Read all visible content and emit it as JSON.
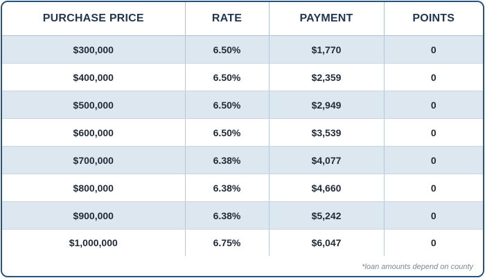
{
  "table": {
    "headers": [
      "PURCHASE PRICE",
      "RATE",
      "PAYMENT",
      "POINTS"
    ],
    "rows": [
      [
        "$300,000",
        "6.50%",
        "$1,770",
        "0"
      ],
      [
        "$400,000",
        "6.50%",
        "$2,359",
        "0"
      ],
      [
        "$500,000",
        "6.50%",
        "$2,949",
        "0"
      ],
      [
        "$600,000",
        "6.50%",
        "$3,539",
        "0"
      ],
      [
        "$700,000",
        "6.38%",
        "$4,077",
        "0"
      ],
      [
        "$800,000",
        "6.38%",
        "$4,660",
        "0"
      ],
      [
        "$900,000",
        "6.38%",
        "$5,242",
        "0"
      ],
      [
        "$1,000,000",
        "6.75%",
        "$6,047",
        "0"
      ]
    ]
  },
  "footnote": "*loan amounts depend on county",
  "colors": {
    "border": "#26537a",
    "header_text": "#22374f",
    "stripe": "#dde7ef"
  }
}
